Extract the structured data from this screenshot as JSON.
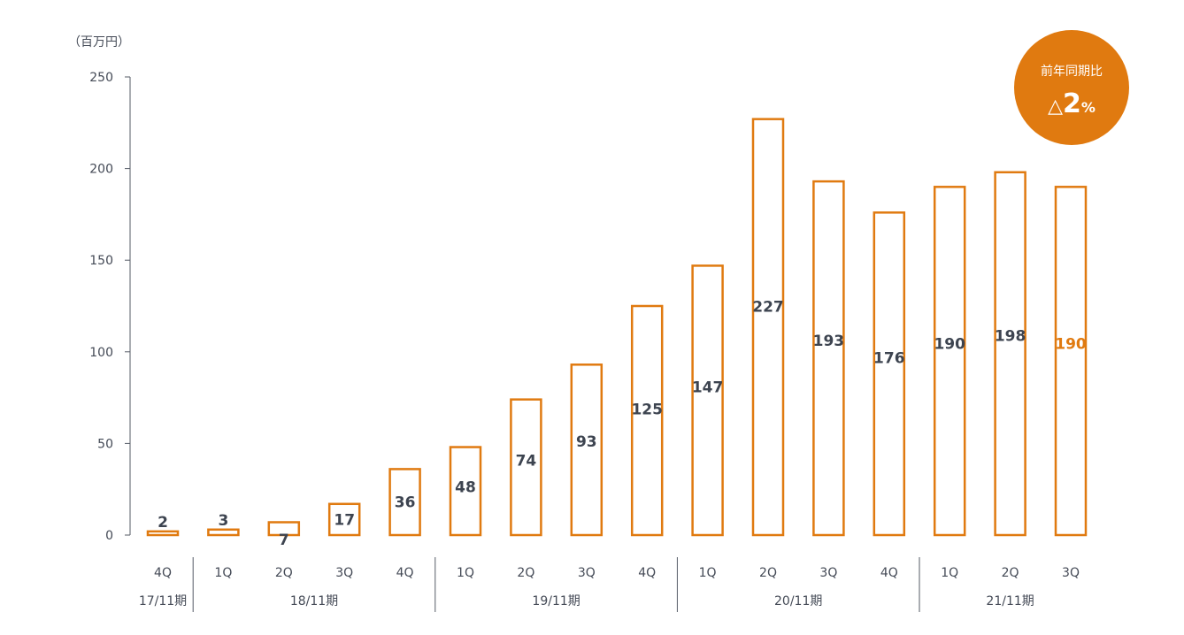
{
  "chart_data": {
    "type": "bar",
    "unit_label": "（百万円）",
    "ylim": [
      0,
      250
    ],
    "yticks": [
      0,
      50,
      100,
      150,
      200,
      250
    ],
    "categories": [
      "4Q",
      "1Q",
      "2Q",
      "3Q",
      "4Q",
      "1Q",
      "2Q",
      "3Q",
      "4Q",
      "1Q",
      "2Q",
      "3Q",
      "4Q",
      "1Q",
      "2Q",
      "3Q"
    ],
    "values": [
      2,
      3,
      7,
      17,
      36,
      48,
      74,
      93,
      125,
      147,
      227,
      193,
      176,
      190,
      198,
      190
    ],
    "data_labels": [
      "2",
      "3",
      "7",
      "17",
      "36",
      "48",
      "74",
      "93",
      "125",
      "147",
      "227",
      "193",
      "176",
      "190",
      "198",
      "190"
    ],
    "highlight_index": 15,
    "periods": [
      {
        "label": "17/11期",
        "span": 1
      },
      {
        "label": "18/11期",
        "span": 4
      },
      {
        "label": "19/11期",
        "span": 4
      },
      {
        "label": "20/11期",
        "span": 4
      },
      {
        "label": "21/11期",
        "span": 3
      }
    ],
    "colors": {
      "bar": "#e07a10",
      "label": "#3d4450",
      "highlight_label": "#e07a10",
      "axis": "#555b66"
    }
  },
  "badge": {
    "label": "前年同期比",
    "prefix": "△",
    "value": "2",
    "unit": "%",
    "color": "#e07a10"
  }
}
